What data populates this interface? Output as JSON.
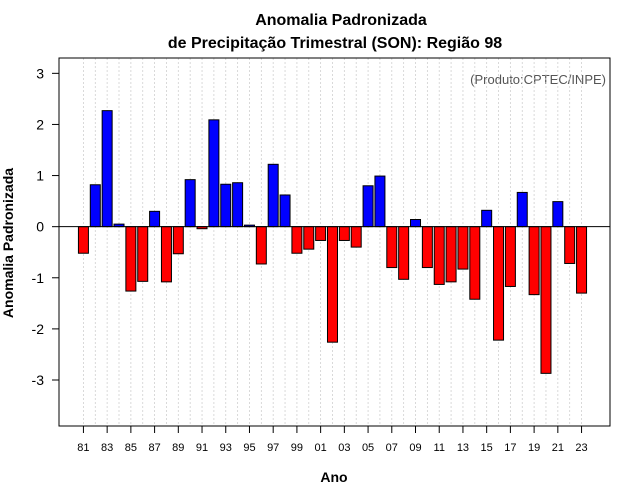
{
  "chart_data": {
    "type": "bar",
    "title": "Anomalia Padronizada",
    "subtitle": "de Precipitação Trimestral (SON): Região 98",
    "xlabel": "Ano",
    "ylabel": "Anomalia Padronizada",
    "annotation": "(Produto:CPTEC/INPE)",
    "ylim": [
      -3.9,
      3.3
    ],
    "yticks": [
      -3,
      -2,
      -1,
      0,
      1,
      2,
      3
    ],
    "categories": [
      "81",
      "82",
      "83",
      "84",
      "85",
      "86",
      "87",
      "88",
      "89",
      "90",
      "91",
      "92",
      "93",
      "94",
      "95",
      "96",
      "97",
      "98",
      "99",
      "00",
      "01",
      "02",
      "03",
      "04",
      "05",
      "06",
      "07",
      "08",
      "09",
      "10",
      "11",
      "12",
      "13",
      "14",
      "15",
      "16",
      "17",
      "18",
      "19",
      "20",
      "21",
      "22",
      "23"
    ],
    "xtick_labels": [
      "81",
      "83",
      "85",
      "87",
      "89",
      "91",
      "93",
      "95",
      "97",
      "99",
      "01",
      "03",
      "05",
      "07",
      "09",
      "11",
      "13",
      "15",
      "17",
      "19",
      "21",
      "23"
    ],
    "values": [
      -0.52,
      0.82,
      2.27,
      0.05,
      -1.26,
      -1.07,
      0.3,
      -1.08,
      -0.53,
      0.92,
      -0.04,
      2.09,
      0.83,
      0.86,
      0.03,
      -0.73,
      1.22,
      0.62,
      -0.52,
      -0.44,
      -0.27,
      -2.26,
      -0.27,
      -0.4,
      0.8,
      0.99,
      -0.8,
      -1.03,
      0.14,
      -0.8,
      -1.13,
      -1.08,
      -0.83,
      -1.42,
      0.32,
      -2.22,
      -1.17,
      0.67,
      -1.33,
      -2.87,
      0.49,
      -0.72,
      -1.3
    ],
    "positive_color": "#0000ff",
    "negative_color": "#ff0000",
    "grid": true
  }
}
